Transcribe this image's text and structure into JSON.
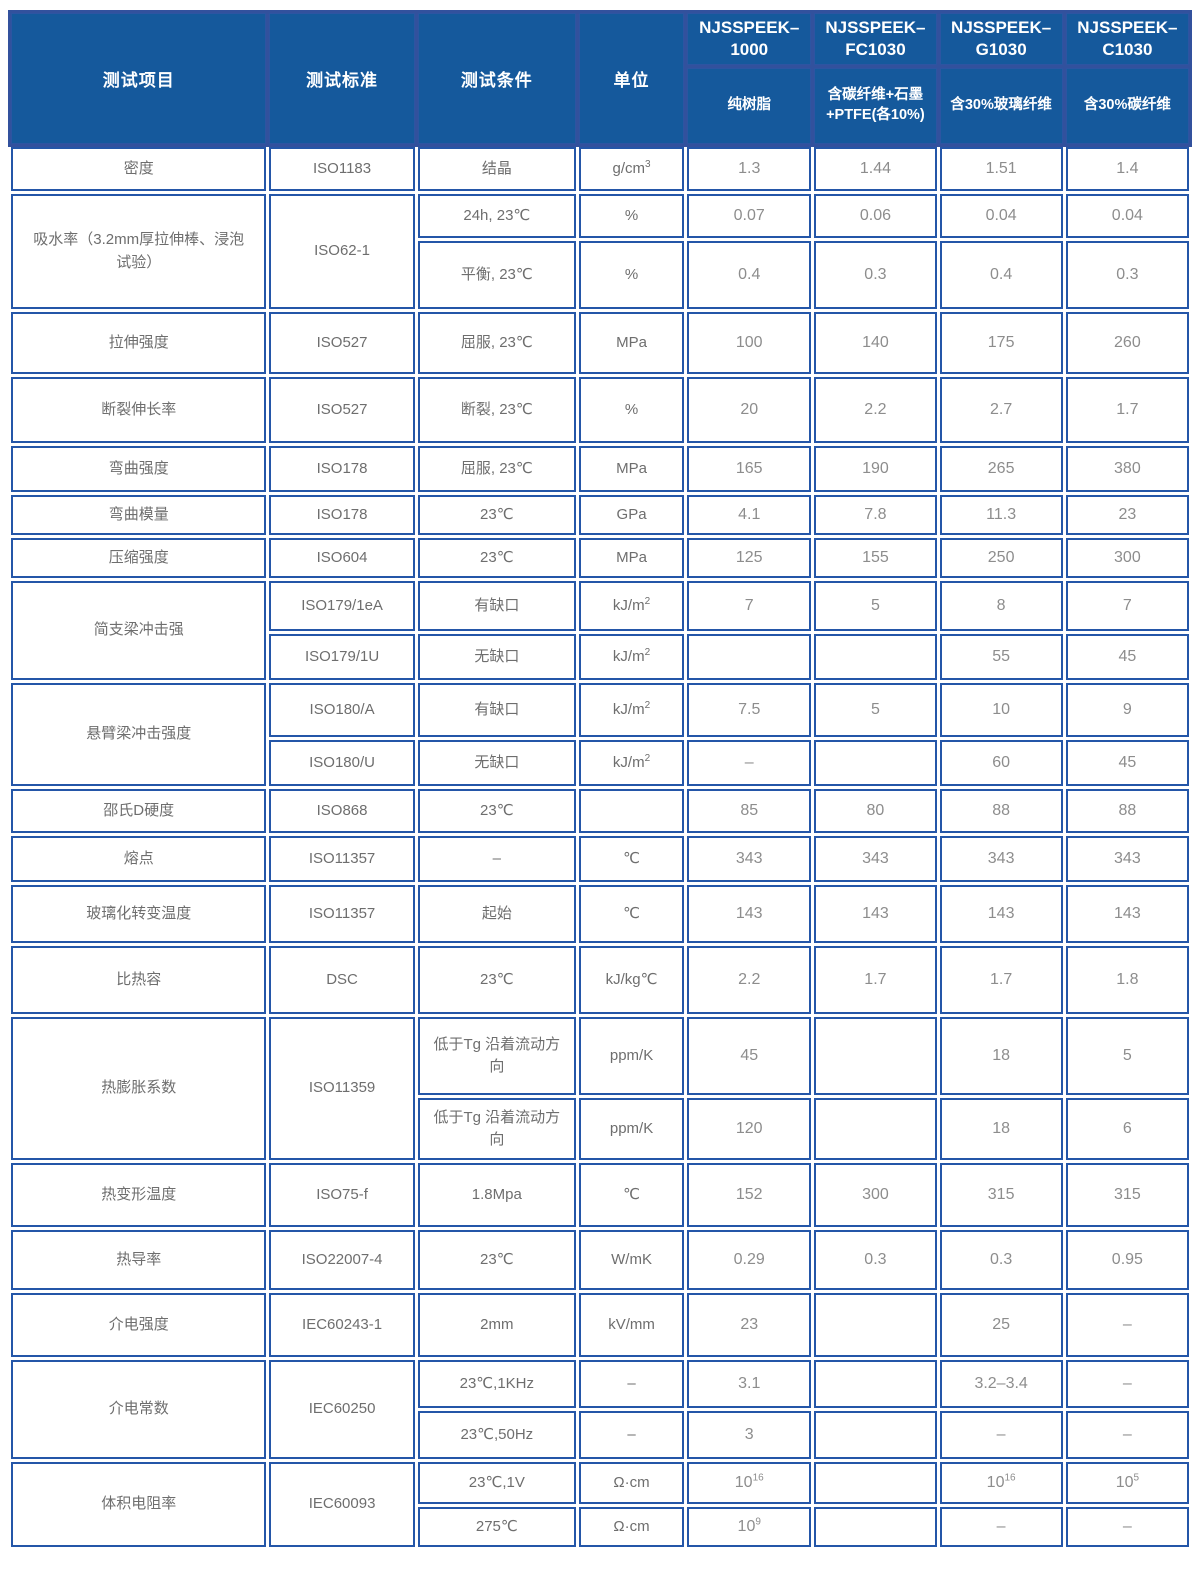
{
  "colors": {
    "header_bg": "#15599c",
    "header_gap": "#32519d",
    "grid_border": "#2456a8",
    "label_text": "#6e6e6e",
    "value_text": "#8d8d8d"
  },
  "chart_data": {
    "type": "table",
    "header": {
      "group_columns": [
        "测试项目",
        "测试标准",
        "测试条件",
        "单位"
      ],
      "products": [
        {
          "model": "NJSSPEEK–\n1000",
          "desc": "纯树脂"
        },
        {
          "model": "NJSSPEEK–\nFC1030",
          "desc": "含碳纤维+石墨\n+PTFE(各10%)"
        },
        {
          "model": "NJSSPEEK–\nG1030",
          "desc": "含30%玻璃纤维"
        },
        {
          "model": "NJSSPEEK–\nC1030",
          "desc": "含30%碳纤维"
        }
      ]
    },
    "rows": [
      {
        "cells": [
          {
            "text": "密度"
          },
          {
            "text": "ISO1183"
          },
          {
            "text": "结晶"
          },
          {
            "text": "g/cm^3"
          },
          {
            "text": "1.3"
          },
          {
            "text": "1.44"
          },
          {
            "text": "1.51"
          },
          {
            "text": "1.4"
          }
        ]
      },
      {
        "cells": [
          {
            "text": "吸水率（3.2mm厚拉伸棒、浸泡试验）",
            "rowspan": 2
          },
          {
            "text": "ISO62-1",
            "rowspan": 2
          },
          {
            "text": "24h, 23℃"
          },
          {
            "text": "%"
          },
          {
            "text": "0.07"
          },
          {
            "text": "0.06"
          },
          {
            "text": "0.04"
          },
          {
            "text": "0.04"
          }
        ]
      },
      {
        "cells": [
          {
            "text": "平衡, 23℃"
          },
          {
            "text": "%"
          },
          {
            "text": "0.4"
          },
          {
            "text": "0.3"
          },
          {
            "text": "0.4"
          },
          {
            "text": "0.3"
          }
        ]
      },
      {
        "cells": [
          {
            "text": "拉伸强度"
          },
          {
            "text": "ISO527"
          },
          {
            "text": "屈服, 23℃"
          },
          {
            "text": "MPa"
          },
          {
            "text": "100"
          },
          {
            "text": "140"
          },
          {
            "text": "175"
          },
          {
            "text": "260"
          }
        ]
      },
      {
        "cells": [
          {
            "text": "断裂伸长率"
          },
          {
            "text": "ISO527"
          },
          {
            "text": "断裂, 23℃"
          },
          {
            "text": "%"
          },
          {
            "text": "20"
          },
          {
            "text": "2.2"
          },
          {
            "text": "2.7"
          },
          {
            "text": "1.7"
          }
        ]
      },
      {
        "cells": [
          {
            "text": "弯曲强度"
          },
          {
            "text": "ISO178"
          },
          {
            "text": "屈服, 23℃"
          },
          {
            "text": "MPa"
          },
          {
            "text": "165"
          },
          {
            "text": "190"
          },
          {
            "text": "265"
          },
          {
            "text": "380"
          }
        ]
      },
      {
        "cells": [
          {
            "text": "弯曲模量"
          },
          {
            "text": "ISO178"
          },
          {
            "text": "23℃"
          },
          {
            "text": "GPa"
          },
          {
            "text": "4.1"
          },
          {
            "text": "7.8"
          },
          {
            "text": "11.3"
          },
          {
            "text": "23"
          }
        ]
      },
      {
        "cells": [
          {
            "text": "压缩强度"
          },
          {
            "text": "ISO604"
          },
          {
            "text": "23℃"
          },
          {
            "text": "MPa"
          },
          {
            "text": "125"
          },
          {
            "text": "155"
          },
          {
            "text": "250"
          },
          {
            "text": "300"
          }
        ]
      },
      {
        "cells": [
          {
            "text": "简支梁冲击强",
            "rowspan": 2
          },
          {
            "text": "ISO179/1eA"
          },
          {
            "text": "有缺口"
          },
          {
            "text": "kJ/m^2"
          },
          {
            "text": "7"
          },
          {
            "text": "5"
          },
          {
            "text": "8"
          },
          {
            "text": "7"
          }
        ]
      },
      {
        "cells": [
          {
            "text": "ISO179/1U"
          },
          {
            "text": "无缺口"
          },
          {
            "text": "kJ/m^2"
          },
          {
            "text": ""
          },
          {
            "text": ""
          },
          {
            "text": "55"
          },
          {
            "text": "45"
          }
        ]
      },
      {
        "cells": [
          {
            "text": "悬臂梁冲击强度",
            "rowspan": 2
          },
          {
            "text": "ISO180/A"
          },
          {
            "text": "有缺口"
          },
          {
            "text": "kJ/m^2"
          },
          {
            "text": "7.5"
          },
          {
            "text": "5"
          },
          {
            "text": "10"
          },
          {
            "text": "9"
          }
        ]
      },
      {
        "cells": [
          {
            "text": "ISO180/U"
          },
          {
            "text": "无缺口"
          },
          {
            "text": "kJ/m^2"
          },
          {
            "text": "–"
          },
          {
            "text": ""
          },
          {
            "text": "60"
          },
          {
            "text": "45"
          }
        ]
      },
      {
        "cells": [
          {
            "text": "邵氏D硬度"
          },
          {
            "text": "ISO868"
          },
          {
            "text": "23℃"
          },
          {
            "text": ""
          },
          {
            "text": "85"
          },
          {
            "text": "80"
          },
          {
            "text": "88"
          },
          {
            "text": "88"
          }
        ]
      },
      {
        "cells": [
          {
            "text": "熔点"
          },
          {
            "text": "ISO11357"
          },
          {
            "text": "–"
          },
          {
            "text": "℃"
          },
          {
            "text": "343"
          },
          {
            "text": "343"
          },
          {
            "text": "343"
          },
          {
            "text": "343"
          }
        ]
      },
      {
        "cells": [
          {
            "text": "玻璃化转变温度"
          },
          {
            "text": "ISO11357"
          },
          {
            "text": "起始"
          },
          {
            "text": "℃"
          },
          {
            "text": "143"
          },
          {
            "text": "143"
          },
          {
            "text": "143"
          },
          {
            "text": "143"
          }
        ]
      },
      {
        "cells": [
          {
            "text": "比热容"
          },
          {
            "text": "DSC"
          },
          {
            "text": "23℃"
          },
          {
            "text": "kJ/kg℃"
          },
          {
            "text": "2.2"
          },
          {
            "text": "1.7"
          },
          {
            "text": "1.7"
          },
          {
            "text": "1.8"
          }
        ]
      },
      {
        "cells": [
          {
            "text": "热膨胀系数",
            "rowspan": 2
          },
          {
            "text": "ISO11359",
            "rowspan": 2
          },
          {
            "text": "低于Tg 沿着流动方向"
          },
          {
            "text": "ppm/K"
          },
          {
            "text": "45"
          },
          {
            "text": ""
          },
          {
            "text": "18"
          },
          {
            "text": "5"
          }
        ]
      },
      {
        "cells": [
          {
            "text": "低于Tg 沿着流动方向"
          },
          {
            "text": "ppm/K"
          },
          {
            "text": "120"
          },
          {
            "text": ""
          },
          {
            "text": "18"
          },
          {
            "text": "6"
          }
        ]
      },
      {
        "cells": [
          {
            "text": "热变形温度"
          },
          {
            "text": "ISO75-f"
          },
          {
            "text": "1.8Mpa"
          },
          {
            "text": "℃"
          },
          {
            "text": "152"
          },
          {
            "text": "300"
          },
          {
            "text": "315"
          },
          {
            "text": "315"
          }
        ]
      },
      {
        "cells": [
          {
            "text": "热导率"
          },
          {
            "text": "ISO22007-4"
          },
          {
            "text": "23℃"
          },
          {
            "text": "W/mK"
          },
          {
            "text": "0.29"
          },
          {
            "text": "0.3"
          },
          {
            "text": "0.3"
          },
          {
            "text": "0.95"
          }
        ]
      },
      {
        "cells": [
          {
            "text": "介电强度"
          },
          {
            "text": "IEC60243-1"
          },
          {
            "text": "2mm"
          },
          {
            "text": "kV/mm"
          },
          {
            "text": "23"
          },
          {
            "text": ""
          },
          {
            "text": "25"
          },
          {
            "text": "–"
          }
        ]
      },
      {
        "cells": [
          {
            "text": "介电常数",
            "rowspan": 2
          },
          {
            "text": "IEC60250",
            "rowspan": 2
          },
          {
            "text": "23℃,1KHz"
          },
          {
            "text": "–"
          },
          {
            "text": "3.1"
          },
          {
            "text": ""
          },
          {
            "text": "3.2–3.4"
          },
          {
            "text": "–"
          }
        ]
      },
      {
        "cells": [
          {
            "text": "23℃,50Hz"
          },
          {
            "text": "–"
          },
          {
            "text": "3"
          },
          {
            "text": ""
          },
          {
            "text": "–"
          },
          {
            "text": "–"
          }
        ]
      },
      {
        "cells": [
          {
            "text": "体积电阻率",
            "rowspan": 2
          },
          {
            "text": "IEC60093",
            "rowspan": 2
          },
          {
            "text": "23℃,1V"
          },
          {
            "text": "Ω·cm"
          },
          {
            "text": "10^16"
          },
          {
            "text": ""
          },
          {
            "text": "10^16"
          },
          {
            "text": "10^5"
          }
        ]
      },
      {
        "cells": [
          {
            "text": "275℃"
          },
          {
            "text": "Ω·cm"
          },
          {
            "text": "10^9"
          },
          {
            "text": ""
          },
          {
            "text": "–"
          },
          {
            "text": "–"
          }
        ]
      }
    ]
  }
}
